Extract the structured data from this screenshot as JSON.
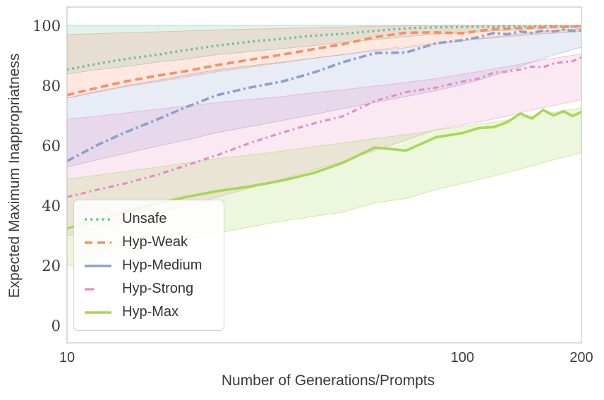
{
  "chart_data": {
    "type": "line",
    "title": "",
    "xlabel": "Number of Generations/Prompts",
    "ylabel": "Expected Maximum Inappropriatness",
    "x_scale": "log",
    "xlim": [
      10,
      200
    ],
    "ylim": [
      -5,
      106
    ],
    "x_ticks": [
      "10",
      "100",
      "200"
    ],
    "y_ticks": [
      "0",
      "20",
      "40",
      "60",
      "80",
      "100"
    ],
    "grid": false,
    "legend_position": "lower left",
    "x": [
      10,
      12,
      14,
      17,
      20,
      24,
      29,
      35,
      42,
      50,
      60,
      72,
      86,
      100,
      110,
      120,
      130,
      140,
      150,
      160,
      170,
      180,
      190,
      200
    ],
    "series": [
      {
        "name": "Unsafe",
        "color": "#66c2a5",
        "style": "dotted",
        "values": [
          85.5,
          87.5,
          89,
          90.5,
          92,
          93.5,
          94.8,
          95.8,
          96.8,
          97.4,
          98.4,
          99.3,
          99.6,
          99.7,
          99.8,
          99.8,
          99.9,
          99.9,
          99.9,
          100,
          100,
          100,
          99.8,
          100
        ],
        "band_upper": [
          100.3,
          100.3,
          100.3,
          100.3,
          100.3,
          100.3,
          100.3,
          100.3,
          100.3,
          100.3,
          100.3,
          100.3,
          100.3,
          100.3,
          100.3,
          100.3,
          100.3,
          100.3,
          100.3,
          100.3,
          100.3,
          100.3,
          100.3,
          100.3
        ],
        "band_lower": [
          84,
          85.5,
          86.5,
          88,
          89,
          90.5,
          91.5,
          92.5,
          93.5,
          94.5,
          95.5,
          96.5,
          97.3,
          97.8,
          98.1,
          98.4,
          98.6,
          98.8,
          99,
          99.2,
          99.4,
          99.5,
          99.7,
          99.8
        ]
      },
      {
        "name": "Hyp-Weak",
        "color": "#fc8d62",
        "style": "dashed",
        "values": [
          77,
          79.5,
          81.5,
          83.5,
          85,
          87,
          88.8,
          90.5,
          92.3,
          94,
          96.3,
          97.8,
          97.9,
          97.6,
          98.4,
          99,
          99.2,
          99.4,
          99.5,
          99.6,
          99.7,
          99.7,
          99.8,
          100
        ],
        "band_upper": [
          97.2,
          97.5,
          97.8,
          98.1,
          98.4,
          98.7,
          99,
          99.2,
          99.5,
          99.7,
          99.9,
          100.1,
          100.3,
          100.3,
          100.3,
          100.3,
          100.3,
          100.3,
          100.3,
          100.3,
          100.3,
          100.3,
          100.3,
          100.3
        ],
        "band_lower": [
          76,
          78,
          79.8,
          81.5,
          83,
          84.8,
          86.3,
          87.8,
          89.3,
          90.5,
          92,
          93.2,
          94.3,
          95.2,
          95.7,
          96.1,
          96.5,
          96.8,
          97.1,
          97.4,
          97.6,
          97.8,
          98,
          98.2
        ]
      },
      {
        "name": "Hyp-Medium",
        "color": "#8da0cb",
        "style": "dashdot",
        "values": [
          55,
          60.5,
          64.5,
          69,
          73,
          77,
          79.5,
          81.5,
          84.5,
          88,
          91,
          91.2,
          94.3,
          95.3,
          96.3,
          97.7,
          97.3,
          98.2,
          97.7,
          98.5,
          98.2,
          98.8,
          98.4,
          98.6
        ],
        "band_upper": [
          76,
          78.3,
          80,
          82,
          83.7,
          85.5,
          86.8,
          88,
          89.3,
          90.5,
          91.8,
          92.8,
          94,
          95.2,
          95.8,
          96.4,
          96.9,
          97.4,
          97.8,
          98.2,
          98.5,
          98.8,
          99,
          99.2
        ],
        "band_lower": [
          53,
          55.5,
          57.5,
          60,
          62,
          64.5,
          66.5,
          68.5,
          70.5,
          72.5,
          74.5,
          76.5,
          78.5,
          80.5,
          82,
          83.5,
          85,
          86.5,
          88,
          89.2,
          90.3,
          91.3,
          92.2,
          93
        ]
      },
      {
        "name": "Hyp-Strong",
        "color": "#e78ac3",
        "style": "sparsedash",
        "values": [
          43,
          45.5,
          47.5,
          50.5,
          53.5,
          57,
          61,
          64.5,
          67.5,
          70,
          75,
          78,
          79.5,
          81.5,
          82.5,
          84.5,
          84.8,
          85.5,
          86.5,
          86.3,
          87.5,
          88,
          88.3,
          89.5
        ],
        "band_upper": [
          69,
          70,
          71,
          72.3,
          73.3,
          74.5,
          75.5,
          76.5,
          77.8,
          78.8,
          80,
          81.2,
          82.5,
          84,
          84.8,
          85.8,
          86.5,
          87.3,
          88,
          88.7,
          89.3,
          89.8,
          90.3,
          90.8
        ],
        "band_lower": [
          30,
          32.5,
          34.5,
          37.5,
          40,
          43,
          46,
          49,
          52,
          55,
          58.5,
          62,
          65.5,
          67,
          68,
          69,
          70,
          71,
          72,
          72.8,
          73.5,
          74.2,
          74.8,
          75.4
        ]
      },
      {
        "name": "Hyp-Max",
        "color": "#a6d854",
        "style": "solid",
        "values": [
          32.5,
          35.5,
          38,
          41,
          43,
          45,
          46.5,
          48.5,
          51,
          54.5,
          59.5,
          58.5,
          63,
          64.3,
          66,
          66.3,
          68,
          70.8,
          69.2,
          72,
          70.2,
          71.6,
          70,
          71.4
        ],
        "band_upper": [
          49,
          50.3,
          51.5,
          53,
          54.3,
          55.8,
          57,
          58.3,
          59.8,
          61,
          62.5,
          63.8,
          65.3,
          66.5,
          67.3,
          68,
          68.7,
          69.4,
          70,
          70.6,
          71.2,
          71.7,
          72.2,
          72.7
        ],
        "band_lower": [
          20,
          22,
          24,
          26.5,
          28.5,
          31,
          33,
          35,
          36.5,
          38,
          41,
          42.5,
          45.5,
          47.5,
          48.8,
          50,
          51.2,
          52.3,
          53.4,
          54.4,
          55.4,
          56.2,
          57,
          57.8
        ]
      }
    ]
  }
}
